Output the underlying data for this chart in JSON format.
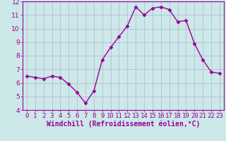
{
  "x": [
    0,
    1,
    2,
    3,
    4,
    5,
    6,
    7,
    8,
    9,
    10,
    11,
    12,
    13,
    14,
    15,
    16,
    17,
    18,
    19,
    20,
    21,
    22,
    23
  ],
  "y": [
    6.5,
    6.4,
    6.3,
    6.5,
    6.4,
    5.9,
    5.3,
    4.5,
    5.4,
    7.7,
    8.6,
    9.4,
    10.2,
    11.6,
    11.0,
    11.5,
    11.6,
    11.4,
    10.5,
    10.6,
    8.9,
    7.7,
    6.8,
    6.7
  ],
  "line_color": "#990099",
  "marker": "D",
  "markersize": 2.5,
  "linewidth": 1.0,
  "bg_color": "#cce8e8",
  "grid_color": "#aaaacc",
  "xlabel": "Windchill (Refroidissement éolien,°C)",
  "xlabel_color": "#990099",
  "tick_color": "#990099",
  "ylim": [
    4,
    12
  ],
  "xlim": [
    -0.5,
    23.5
  ],
  "yticks": [
    4,
    5,
    6,
    7,
    8,
    9,
    10,
    11,
    12
  ],
  "xticks": [
    0,
    1,
    2,
    3,
    4,
    5,
    6,
    7,
    8,
    9,
    10,
    11,
    12,
    13,
    14,
    15,
    16,
    17,
    18,
    19,
    20,
    21,
    22,
    23
  ],
  "xlabel_fontsize": 7,
  "tick_fontsize": 6.5
}
